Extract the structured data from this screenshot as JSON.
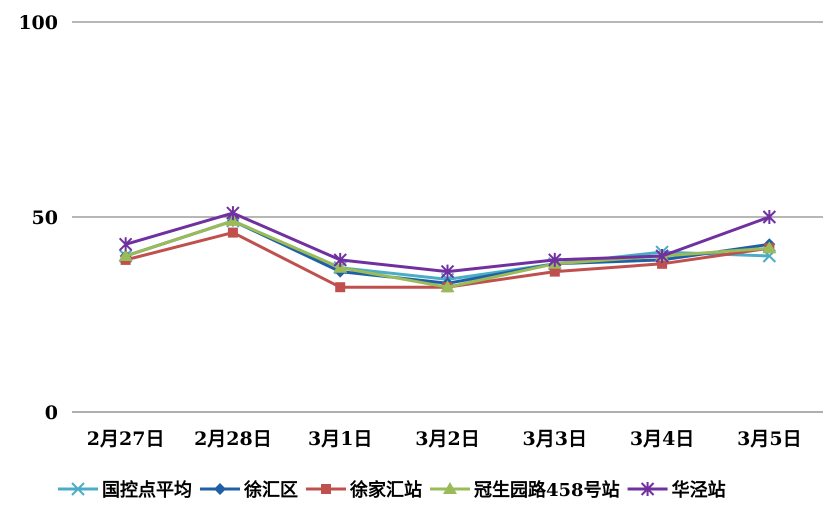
{
  "chart_data": {
    "type": "line",
    "title": "",
    "xlabel": "",
    "ylabel": "",
    "categories": [
      "2月27日",
      "2月28日",
      "3月1日",
      "3月2日",
      "3月3日",
      "3月4日",
      "3月5日"
    ],
    "ylim": [
      0,
      100
    ],
    "yticks": [
      "0",
      "50",
      "100"
    ],
    "grid": true,
    "legend_position": "bottom",
    "series": [
      {
        "name": "国控点平均",
        "values": [
          40,
          49,
          37,
          34,
          38,
          41,
          40
        ],
        "color": "#4bacc6",
        "marker": "asterisk"
      },
      {
        "name": "徐汇区",
        "values": [
          40,
          49,
          36,
          33,
          38,
          39,
          43
        ],
        "color": "#1f5fa6",
        "marker": "diamond"
      },
      {
        "name": "徐家汇站",
        "values": [
          39,
          46,
          32,
          32,
          36,
          38,
          42
        ],
        "color": "#c0504d",
        "marker": "square"
      },
      {
        "name": "冠生园路458号站",
        "values": [
          40,
          49,
          37,
          32,
          38,
          40,
          42
        ],
        "color": "#9bbb59",
        "marker": "triangle"
      },
      {
        "name": "华泾站",
        "values": [
          43,
          51,
          39,
          36,
          39,
          40,
          50
        ],
        "color": "#7030a0",
        "marker": "star"
      }
    ]
  }
}
